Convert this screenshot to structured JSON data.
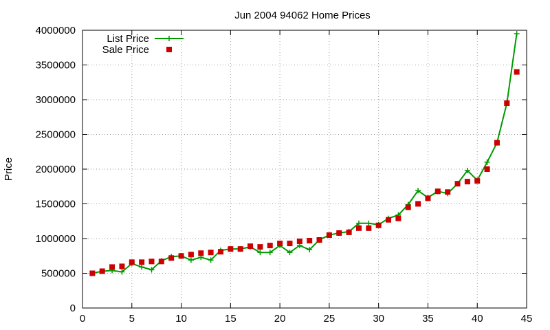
{
  "chart_data": {
    "type": "line",
    "title": "Jun 2004 94062 Home Prices",
    "xlabel": "",
    "ylabel": "Price",
    "xlim": [
      0,
      45
    ],
    "ylim": [
      0,
      4000000
    ],
    "xticks": [
      0,
      5,
      10,
      15,
      20,
      25,
      30,
      35,
      40,
      45
    ],
    "yticks": [
      0,
      500000,
      1000000,
      1500000,
      2000000,
      2500000,
      3000000,
      3500000,
      4000000
    ],
    "grid": true,
    "legend_position": "top-left",
    "x": [
      1,
      2,
      3,
      4,
      5,
      6,
      7,
      8,
      9,
      10,
      11,
      12,
      13,
      14,
      15,
      16,
      17,
      18,
      19,
      20,
      21,
      22,
      23,
      24,
      25,
      26,
      27,
      28,
      29,
      30,
      31,
      32,
      33,
      34,
      35,
      36,
      37,
      38,
      39,
      40,
      41,
      42,
      43,
      44
    ],
    "series": [
      {
        "name": "List Price",
        "style": "line-plus",
        "color": "#009900",
        "values": [
          500000,
          530000,
          540000,
          520000,
          640000,
          590000,
          550000,
          680000,
          740000,
          750000,
          690000,
          730000,
          690000,
          830000,
          850000,
          850000,
          880000,
          800000,
          800000,
          900000,
          800000,
          900000,
          840000,
          980000,
          1050000,
          1080000,
          1100000,
          1220000,
          1220000,
          1200000,
          1290000,
          1340000,
          1490000,
          1690000,
          1590000,
          1680000,
          1650000,
          1790000,
          1980000,
          1840000,
          2100000,
          2380000,
          2950000,
          3950000
        ]
      },
      {
        "name": "Sale Price",
        "style": "points-square",
        "color": "#cc0000",
        "values": [
          500000,
          530000,
          590000,
          600000,
          660000,
          660000,
          670000,
          670000,
          720000,
          750000,
          770000,
          790000,
          800000,
          810000,
          850000,
          850000,
          890000,
          880000,
          900000,
          930000,
          930000,
          960000,
          970000,
          980000,
          1050000,
          1080000,
          1090000,
          1150000,
          1150000,
          1190000,
          1270000,
          1290000,
          1450000,
          1500000,
          1580000,
          1680000,
          1670000,
          1790000,
          1820000,
          1830000,
          2000000,
          2380000,
          2950000,
          3400000
        ]
      }
    ]
  }
}
